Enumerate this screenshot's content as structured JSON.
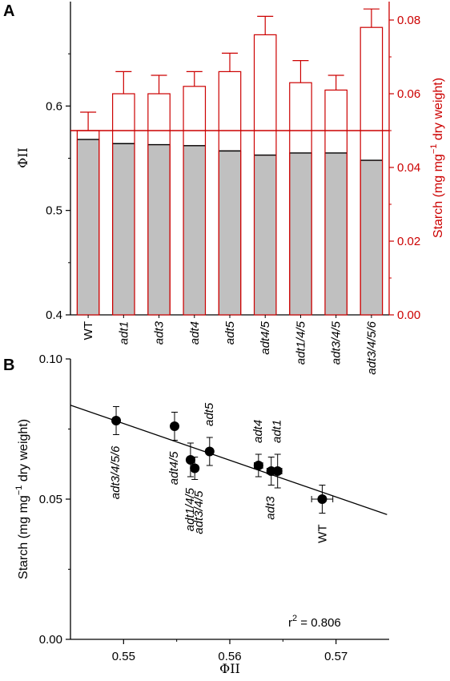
{
  "chart_data": [
    {
      "panel": "A",
      "type": "bar",
      "categories": [
        "WT",
        "adt1",
        "adt3",
        "adt4",
        "adt5",
        "adt4/5",
        "adt1/4/5",
        "adt3/4/5",
        "adt3/4/5/6"
      ],
      "italic_categories": [
        false,
        true,
        true,
        true,
        true,
        true,
        true,
        true,
        true
      ],
      "ylabel": "ΦII",
      "ylim": [
        0.4,
        0.7
      ],
      "yticks": [
        "0.4",
        "0.5",
        "0.6"
      ],
      "y2label_parts": [
        "Starch (mg mg",
        "−1",
        " dry weight)"
      ],
      "y2lim": [
        0.0,
        0.085
      ],
      "y2ticks": [
        "0.00",
        "0.02",
        "0.04",
        "0.06",
        "0.08"
      ],
      "reference_line_starch": 0.05,
      "series": [
        {
          "values": [
            0.568,
            0.564,
            0.563,
            0.562,
            0.557,
            0.553,
            0.555,
            0.555,
            0.548
          ],
          "errors": [
            0.001,
            0.001,
            0.001,
            0.001,
            0.001,
            0.001,
            0.001,
            0.001,
            0.001
          ],
          "axis": "left",
          "style": "filled-gray"
        },
        {
          "values": [
            0.05,
            0.06,
            0.06,
            0.062,
            0.066,
            0.076,
            0.063,
            0.061,
            0.078
          ],
          "errors": [
            0.005,
            0.006,
            0.005,
            0.004,
            0.005,
            0.005,
            0.006,
            0.004,
            0.005
          ],
          "axis": "right",
          "style": "outline-red"
        }
      ],
      "colors": {
        "bar_fill": "#c0c0c0",
        "red": "#cc0000"
      }
    },
    {
      "panel": "B",
      "type": "scatter",
      "xlabel": "ΦII",
      "ylabel_parts": [
        "Starch (mg mg",
        "−1",
        " dry weight)"
      ],
      "xlim": [
        0.545,
        0.575
      ],
      "xticks": [
        "0.55",
        "0.56",
        "0.57"
      ],
      "ylim": [
        0.0,
        0.1
      ],
      "yticks": [
        "0.00",
        "0.05",
        "0.10"
      ],
      "annotation": "r",
      "annotation_sup": "2",
      "annotation_rest": " = 0.806",
      "points": [
        {
          "label": "adt3/4/5/6",
          "x": 0.5493,
          "y": 0.078,
          "xerr": 0.0003,
          "yerr": 0.005
        },
        {
          "label": "adt4/5",
          "x": 0.5548,
          "y": 0.076,
          "xerr": 0.0003,
          "yerr": 0.005
        },
        {
          "label": "adt1/4/5",
          "x": 0.5563,
          "y": 0.064,
          "xerr": 0.0003,
          "yerr": 0.006
        },
        {
          "label": "adt3/4/5",
          "x": 0.5567,
          "y": 0.061,
          "xerr": 0.0003,
          "yerr": 0.004
        },
        {
          "label": "adt5",
          "x": 0.5581,
          "y": 0.067,
          "xerr": 0.0003,
          "yerr": 0.005
        },
        {
          "label": "adt4",
          "x": 0.5627,
          "y": 0.062,
          "xerr": 0.0004,
          "yerr": 0.004
        },
        {
          "label": "adt3",
          "x": 0.5639,
          "y": 0.06,
          "xerr": 0.0004,
          "yerr": 0.005
        },
        {
          "label": "adt1",
          "x": 0.5645,
          "y": 0.06,
          "xerr": 0.0004,
          "yerr": 0.006
        },
        {
          "label": "WT",
          "x": 0.5687,
          "y": 0.05,
          "xerr": 0.001,
          "yerr": 0.005
        }
      ],
      "fit_line": {
        "x": [
          0.545,
          0.5748
        ],
        "y": [
          0.0835,
          0.0445
        ]
      }
    }
  ]
}
